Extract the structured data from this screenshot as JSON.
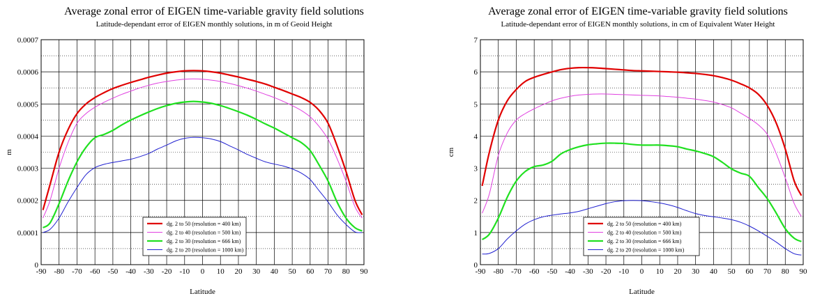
{
  "chart_data": [
    {
      "type": "line",
      "title": "Average zonal error of EIGEN time-variable gravity field solutions",
      "subtitle": "Latitude-dependant error of  EIGEN monthly solutions, in m of Geoid Height",
      "xlabel": "Latitude",
      "ylabel": "m",
      "xlim": [
        -90,
        90
      ],
      "ylim": [
        0,
        0.0007
      ],
      "xticks": [
        -90,
        -80,
        -70,
        -60,
        -50,
        -40,
        -30,
        -20,
        -10,
        0,
        10,
        20,
        30,
        40,
        50,
        60,
        70,
        80,
        90
      ],
      "yticks": [
        0,
        0.0001,
        0.0002,
        0.0003,
        0.0004,
        0.0005,
        0.0006,
        0.0007
      ],
      "ytick_labels": [
        "0",
        "0.0001",
        "0.0002",
        "0.0003",
        "0.0004",
        "0.0005",
        "0.0006",
        "0.0007"
      ],
      "grid": true,
      "legend_position": "bottom-center",
      "x": [
        -89,
        -85,
        -80,
        -75,
        -70,
        -65,
        -60,
        -55,
        -50,
        -45,
        -40,
        -35,
        -30,
        -25,
        -20,
        -15,
        -10,
        -5,
        0,
        5,
        10,
        15,
        20,
        25,
        30,
        35,
        40,
        45,
        50,
        55,
        60,
        65,
        70,
        75,
        80,
        85,
        89
      ],
      "series": [
        {
          "name": "dg. 2 to 50 (resolution = 400 km)",
          "color": "#e00000",
          "width": 2.2,
          "values": [
            0.00017,
            0.00025,
            0.00035,
            0.00042,
            0.00047,
            0.0005,
            0.00052,
            0.000535,
            0.000548,
            0.000558,
            0.000567,
            0.000575,
            0.000583,
            0.00059,
            0.000596,
            0.0006,
            0.000603,
            0.000604,
            0.000603,
            0.0006,
            0.000596,
            0.00059,
            0.000584,
            0.000577,
            0.00057,
            0.000562,
            0.000552,
            0.000542,
            0.000531,
            0.00052,
            0.000505,
            0.00048,
            0.00044,
            0.00037,
            0.00029,
            0.0002,
            0.000155
          ]
        },
        {
          "name": "dg. 2 to 40 (resolution = 500 km)",
          "color": "#e040e0",
          "width": 1,
          "values": [
            0.000145,
            0.0002,
            0.0003,
            0.00038,
            0.00044,
            0.00047,
            0.00049,
            0.000505,
            0.000518,
            0.00053,
            0.00054,
            0.00055,
            0.000558,
            0.000565,
            0.00057,
            0.000574,
            0.000577,
            0.000578,
            0.000577,
            0.000574,
            0.00057,
            0.000564,
            0.000557,
            0.000549,
            0.00054,
            0.00053,
            0.00052,
            0.000508,
            0.000495,
            0.00048,
            0.00046,
            0.00043,
            0.00039,
            0.00033,
            0.00026,
            0.00018,
            0.000145
          ]
        },
        {
          "name": "dg. 2 to 30 (resolution = 666 km)",
          "color": "#20e020",
          "width": 2.2,
          "values": [
            0.000115,
            0.00013,
            0.00019,
            0.00026,
            0.00032,
            0.000365,
            0.000395,
            0.000405,
            0.000418,
            0.000435,
            0.00045,
            0.000463,
            0.000475,
            0.000486,
            0.000495,
            0.000502,
            0.000506,
            0.000508,
            0.000506,
            0.000502,
            0.000495,
            0.000486,
            0.000476,
            0.000465,
            0.000452,
            0.000438,
            0.000425,
            0.00041,
            0.000395,
            0.00038,
            0.000355,
            0.00031,
            0.00026,
            0.000195,
            0.000145,
            0.000115,
            0.000105
          ]
        },
        {
          "name": "dg. 2 to 20 (resolution = 1000 km)",
          "color": "#2020d0",
          "width": 1,
          "values": [
            0.0001,
            0.00011,
            0.000145,
            0.000195,
            0.00024,
            0.00028,
            0.000302,
            0.000312,
            0.000318,
            0.000323,
            0.000328,
            0.000336,
            0.000346,
            0.00036,
            0.000372,
            0.000385,
            0.000393,
            0.000396,
            0.000395,
            0.000391,
            0.000383,
            0.00037,
            0.000357,
            0.000343,
            0.000331,
            0.00032,
            0.000313,
            0.000307,
            0.000298,
            0.000285,
            0.000265,
            0.00023,
            0.000195,
            0.000155,
            0.000125,
            0.000102,
            0.0001
          ]
        }
      ]
    },
    {
      "type": "line",
      "title": "Average zonal error of EIGEN time-variable gravity field solutions",
      "subtitle": "Latitude-dependant error of  EIGEN monthly solutions, in cm of Equivalent Water Height",
      "xlabel": "Latitude",
      "ylabel": "cm",
      "xlim": [
        -90,
        90
      ],
      "ylim": [
        0,
        7
      ],
      "xticks": [
        -90,
        -80,
        -70,
        -60,
        -50,
        -40,
        -30,
        -20,
        -10,
        0,
        10,
        20,
        30,
        40,
        50,
        60,
        70,
        80,
        90
      ],
      "yticks": [
        0,
        1,
        2,
        3,
        4,
        5,
        6,
        7
      ],
      "ytick_labels": [
        "0",
        "1",
        "2",
        "3",
        "4",
        "5",
        "6",
        "7"
      ],
      "grid": true,
      "legend_position": "bottom-center",
      "x": [
        -89,
        -85,
        -80,
        -75,
        -70,
        -65,
        -60,
        -55,
        -50,
        -45,
        -40,
        -35,
        -30,
        -25,
        -20,
        -15,
        -10,
        -5,
        0,
        5,
        10,
        15,
        20,
        25,
        30,
        35,
        40,
        45,
        50,
        55,
        60,
        65,
        70,
        75,
        80,
        85,
        89
      ],
      "series": [
        {
          "name": "dg. 2 to 50 (resolution = 400 km)",
          "color": "#e00000",
          "width": 2.2,
          "values": [
            2.45,
            3.5,
            4.5,
            5.1,
            5.45,
            5.7,
            5.83,
            5.92,
            6.0,
            6.07,
            6.11,
            6.13,
            6.13,
            6.12,
            6.1,
            6.08,
            6.06,
            6.04,
            6.03,
            6.02,
            6.01,
            6.0,
            5.99,
            5.97,
            5.95,
            5.92,
            5.88,
            5.82,
            5.74,
            5.63,
            5.5,
            5.3,
            4.95,
            4.4,
            3.6,
            2.6,
            2.15
          ]
        },
        {
          "name": "dg. 2 to 40 (resolution = 500 km)",
          "color": "#e040e0",
          "width": 1,
          "values": [
            1.6,
            2.2,
            3.4,
            4.1,
            4.5,
            4.7,
            4.85,
            4.98,
            5.1,
            5.18,
            5.24,
            5.28,
            5.3,
            5.31,
            5.31,
            5.3,
            5.29,
            5.28,
            5.27,
            5.26,
            5.25,
            5.23,
            5.21,
            5.18,
            5.15,
            5.11,
            5.06,
            4.98,
            4.88,
            4.72,
            4.55,
            4.35,
            4.05,
            3.45,
            2.7,
            1.9,
            1.5
          ]
        },
        {
          "name": "dg. 2 to 30 (resolution = 666 km)",
          "color": "#20e020",
          "width": 2.2,
          "values": [
            0.78,
            0.95,
            1.45,
            2.1,
            2.6,
            2.9,
            3.05,
            3.1,
            3.22,
            3.45,
            3.58,
            3.67,
            3.73,
            3.76,
            3.78,
            3.78,
            3.77,
            3.74,
            3.72,
            3.72,
            3.72,
            3.7,
            3.67,
            3.6,
            3.54,
            3.46,
            3.36,
            3.18,
            2.98,
            2.85,
            2.75,
            2.4,
            2.05,
            1.6,
            1.12,
            0.82,
            0.72
          ]
        },
        {
          "name": "dg. 2 to 20 (resolution = 1000 km)",
          "color": "#2020d0",
          "width": 1,
          "values": [
            0.33,
            0.35,
            0.5,
            0.8,
            1.05,
            1.26,
            1.4,
            1.49,
            1.54,
            1.58,
            1.61,
            1.66,
            1.74,
            1.82,
            1.9,
            1.96,
            1.99,
            2.0,
            1.99,
            1.96,
            1.92,
            1.86,
            1.78,
            1.68,
            1.59,
            1.53,
            1.49,
            1.45,
            1.4,
            1.32,
            1.2,
            1.05,
            0.88,
            0.7,
            0.5,
            0.34,
            0.3
          ]
        }
      ]
    }
  ]
}
